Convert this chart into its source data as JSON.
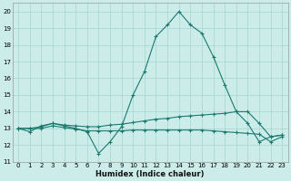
{
  "xlabel": "Humidex (Indice chaleur)",
  "bg_color": "#ccecea",
  "grid_color": "#aad8d5",
  "line_color": "#1a7a6e",
  "xlim": [
    -0.5,
    23.5
  ],
  "ylim": [
    11,
    20.5
  ],
  "xticks": [
    0,
    1,
    2,
    3,
    4,
    5,
    6,
    7,
    8,
    9,
    10,
    11,
    12,
    13,
    14,
    15,
    16,
    17,
    18,
    19,
    20,
    21,
    22,
    23
  ],
  "yticks": [
    11,
    12,
    13,
    14,
    15,
    16,
    17,
    18,
    19,
    20
  ],
  "line1_x": [
    0,
    1,
    2,
    3,
    4,
    5,
    6,
    7,
    8,
    9,
    10,
    11,
    12,
    13,
    14,
    15,
    16,
    17,
    18,
    19,
    20,
    21,
    22,
    23
  ],
  "line1_y": [
    13.0,
    12.8,
    13.15,
    13.3,
    13.15,
    13.0,
    12.8,
    11.5,
    12.2,
    13.1,
    15.0,
    16.4,
    18.5,
    19.2,
    20.0,
    19.2,
    18.7,
    17.3,
    15.6,
    14.0,
    13.3,
    12.2,
    12.5,
    12.6
  ],
  "line2_x": [
    0,
    1,
    2,
    3,
    4,
    5,
    6,
    7,
    8,
    9,
    10,
    11,
    12,
    13,
    14,
    15,
    16,
    17,
    18,
    19,
    20,
    21,
    22,
    23
  ],
  "line2_y": [
    13.0,
    13.0,
    13.1,
    13.3,
    13.2,
    13.15,
    13.1,
    13.1,
    13.2,
    13.25,
    13.35,
    13.45,
    13.55,
    13.6,
    13.7,
    13.75,
    13.8,
    13.85,
    13.9,
    14.0,
    14.0,
    13.3,
    12.5,
    12.6
  ],
  "line3_x": [
    0,
    1,
    2,
    3,
    4,
    5,
    6,
    7,
    8,
    9,
    10,
    11,
    12,
    13,
    14,
    15,
    16,
    17,
    18,
    19,
    20,
    21,
    22,
    23
  ],
  "line3_y": [
    13.0,
    13.0,
    13.0,
    13.15,
    13.05,
    12.95,
    12.85,
    12.85,
    12.85,
    12.85,
    12.9,
    12.9,
    12.9,
    12.9,
    12.9,
    12.9,
    12.9,
    12.85,
    12.8,
    12.75,
    12.7,
    12.65,
    12.2,
    12.5
  ]
}
